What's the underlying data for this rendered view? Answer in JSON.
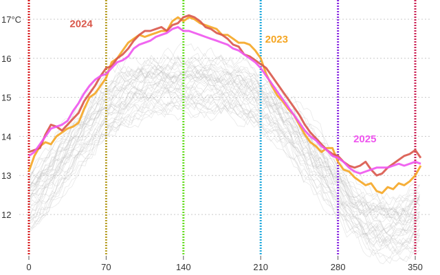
{
  "chart_data": {
    "type": "line",
    "title": "",
    "xlabel": "",
    "ylabel": "",
    "xlim": [
      -8,
      362
    ],
    "ylim": [
      11.1,
      17.35
    ],
    "x_ticks": [
      0,
      70,
      140,
      210,
      280,
      350
    ],
    "y_ticks": [
      12,
      13,
      14,
      15,
      16,
      17
    ],
    "y_unit_label": "°C",
    "grid": {
      "horizontal": true,
      "style": "dotted"
    },
    "vertical_markers": [
      {
        "x": 0,
        "color": "#d7191c"
      },
      {
        "x": 70,
        "color": "#b8a028"
      },
      {
        "x": 140,
        "color": "#66dd22"
      },
      {
        "x": 210,
        "color": "#22aadd"
      },
      {
        "x": 280,
        "color": "#8a2be2"
      },
      {
        "x": 350,
        "color": "#cc2255"
      }
    ],
    "background_years": {
      "color": "#bdbdbd",
      "description_hidden": true,
      "count": 40
    },
    "series": [
      {
        "name": "2023",
        "color": "#f5a623",
        "label_x": 214,
        "label_y": 16.4,
        "points": [
          [
            0,
            13.1
          ],
          [
            5,
            13.5
          ],
          [
            10,
            13.75
          ],
          [
            15,
            13.85
          ],
          [
            20,
            13.8
          ],
          [
            25,
            14.0
          ],
          [
            30,
            14.1
          ],
          [
            35,
            14.2
          ],
          [
            40,
            14.25
          ],
          [
            45,
            14.35
          ],
          [
            50,
            14.7
          ],
          [
            55,
            15.0
          ],
          [
            60,
            15.1
          ],
          [
            65,
            15.3
          ],
          [
            70,
            15.5
          ],
          [
            75,
            15.9
          ],
          [
            80,
            16.0
          ],
          [
            85,
            16.2
          ],
          [
            90,
            16.4
          ],
          [
            95,
            16.5
          ],
          [
            100,
            16.6
          ],
          [
            105,
            16.55
          ],
          [
            110,
            16.6
          ],
          [
            115,
            16.65
          ],
          [
            120,
            16.7
          ],
          [
            125,
            16.7
          ],
          [
            130,
            16.95
          ],
          [
            135,
            17.05
          ],
          [
            140,
            16.95
          ],
          [
            145,
            17.05
          ],
          [
            150,
            17.0
          ],
          [
            155,
            16.9
          ],
          [
            160,
            16.85
          ],
          [
            165,
            16.8
          ],
          [
            170,
            16.75
          ],
          [
            175,
            16.6
          ],
          [
            180,
            16.6
          ],
          [
            185,
            16.5
          ],
          [
            190,
            16.4
          ],
          [
            195,
            16.4
          ],
          [
            200,
            16.35
          ],
          [
            205,
            16.2
          ],
          [
            210,
            16.0
          ],
          [
            215,
            15.6
          ],
          [
            220,
            15.3
          ],
          [
            225,
            15.05
          ],
          [
            230,
            14.9
          ],
          [
            235,
            14.7
          ],
          [
            240,
            14.55
          ],
          [
            245,
            14.3
          ],
          [
            250,
            14.05
          ],
          [
            255,
            13.85
          ],
          [
            260,
            13.75
          ],
          [
            265,
            13.6
          ],
          [
            270,
            13.7
          ],
          [
            275,
            13.7
          ],
          [
            280,
            13.35
          ],
          [
            285,
            13.15
          ],
          [
            290,
            13.1
          ],
          [
            295,
            12.95
          ],
          [
            300,
            12.85
          ],
          [
            305,
            12.75
          ],
          [
            310,
            12.8
          ],
          [
            315,
            12.6
          ],
          [
            320,
            12.55
          ],
          [
            325,
            12.7
          ],
          [
            330,
            12.65
          ],
          [
            335,
            12.8
          ],
          [
            340,
            12.75
          ],
          [
            345,
            12.85
          ],
          [
            350,
            13.0
          ],
          [
            355,
            13.25
          ]
        ]
      },
      {
        "name": "2024",
        "color": "#d9574a",
        "label_x": 37,
        "label_y": 16.8,
        "points": [
          [
            0,
            13.6
          ],
          [
            5,
            13.65
          ],
          [
            10,
            13.7
          ],
          [
            15,
            14.05
          ],
          [
            20,
            14.3
          ],
          [
            25,
            14.25
          ],
          [
            30,
            14.15
          ],
          [
            35,
            14.3
          ],
          [
            40,
            14.45
          ],
          [
            45,
            14.6
          ],
          [
            50,
            14.9
          ],
          [
            55,
            15.1
          ],
          [
            60,
            15.3
          ],
          [
            65,
            15.55
          ],
          [
            70,
            15.75
          ],
          [
            75,
            15.8
          ],
          [
            80,
            16.0
          ],
          [
            85,
            16.1
          ],
          [
            90,
            16.25
          ],
          [
            95,
            16.45
          ],
          [
            100,
            16.6
          ],
          [
            105,
            16.7
          ],
          [
            110,
            16.7
          ],
          [
            115,
            16.75
          ],
          [
            120,
            16.8
          ],
          [
            125,
            16.7
          ],
          [
            130,
            16.85
          ],
          [
            135,
            16.9
          ],
          [
            140,
            17.05
          ],
          [
            145,
            17.1
          ],
          [
            150,
            17.05
          ],
          [
            155,
            16.95
          ],
          [
            160,
            16.8
          ],
          [
            165,
            16.75
          ],
          [
            170,
            16.65
          ],
          [
            175,
            16.6
          ],
          [
            180,
            16.5
          ],
          [
            185,
            16.35
          ],
          [
            190,
            16.3
          ],
          [
            195,
            16.1
          ],
          [
            200,
            16.05
          ],
          [
            205,
            15.95
          ],
          [
            210,
            15.85
          ],
          [
            215,
            15.75
          ],
          [
            220,
            15.55
          ],
          [
            225,
            15.35
          ],
          [
            230,
            15.15
          ],
          [
            235,
            14.95
          ],
          [
            240,
            14.75
          ],
          [
            245,
            14.55
          ],
          [
            250,
            14.3
          ],
          [
            255,
            14.1
          ],
          [
            260,
            13.95
          ],
          [
            265,
            13.8
          ],
          [
            270,
            13.65
          ],
          [
            275,
            13.55
          ],
          [
            280,
            13.5
          ],
          [
            285,
            13.35
          ],
          [
            290,
            13.25
          ],
          [
            295,
            13.2
          ],
          [
            300,
            13.25
          ],
          [
            305,
            13.35
          ],
          [
            310,
            13.15
          ],
          [
            315,
            13.0
          ],
          [
            320,
            13.05
          ],
          [
            325,
            13.2
          ],
          [
            330,
            13.3
          ],
          [
            335,
            13.4
          ],
          [
            340,
            13.5
          ],
          [
            345,
            13.55
          ],
          [
            350,
            13.65
          ],
          [
            355,
            13.45
          ]
        ]
      },
      {
        "name": "2025",
        "color": "#ee55ee",
        "label_x": 294,
        "label_y": 13.85,
        "points": [
          [
            0,
            13.5
          ],
          [
            5,
            13.6
          ],
          [
            10,
            13.8
          ],
          [
            15,
            14.0
          ],
          [
            20,
            14.2
          ],
          [
            25,
            14.25
          ],
          [
            30,
            14.3
          ],
          [
            35,
            14.4
          ],
          [
            40,
            14.65
          ],
          [
            45,
            14.85
          ],
          [
            50,
            15.1
          ],
          [
            55,
            15.3
          ],
          [
            60,
            15.45
          ],
          [
            65,
            15.55
          ],
          [
            70,
            15.6
          ],
          [
            75,
            15.75
          ],
          [
            80,
            15.9
          ],
          [
            85,
            15.95
          ],
          [
            90,
            16.05
          ],
          [
            95,
            16.25
          ],
          [
            100,
            16.35
          ],
          [
            105,
            16.4
          ],
          [
            110,
            16.45
          ],
          [
            115,
            16.55
          ],
          [
            120,
            16.6
          ],
          [
            125,
            16.65
          ],
          [
            130,
            16.75
          ],
          [
            135,
            16.8
          ],
          [
            140,
            16.7
          ],
          [
            145,
            16.7
          ],
          [
            150,
            16.65
          ],
          [
            155,
            16.6
          ],
          [
            160,
            16.55
          ],
          [
            165,
            16.5
          ],
          [
            170,
            16.45
          ],
          [
            175,
            16.4
          ],
          [
            180,
            16.35
          ],
          [
            185,
            16.25
          ],
          [
            190,
            16.2
          ],
          [
            195,
            16.1
          ],
          [
            200,
            16.0
          ],
          [
            205,
            15.9
          ],
          [
            210,
            15.75
          ],
          [
            215,
            15.55
          ],
          [
            220,
            15.35
          ],
          [
            225,
            15.15
          ],
          [
            230,
            14.95
          ],
          [
            235,
            14.75
          ],
          [
            240,
            14.55
          ],
          [
            245,
            14.35
          ],
          [
            250,
            14.15
          ],
          [
            255,
            14.0
          ],
          [
            260,
            13.9
          ],
          [
            265,
            13.75
          ],
          [
            270,
            13.65
          ],
          [
            275,
            13.5
          ],
          [
            280,
            13.45
          ],
          [
            285,
            13.35
          ],
          [
            290,
            13.2
          ],
          [
            295,
            13.1
          ],
          [
            300,
            13.05
          ],
          [
            305,
            13.1
          ],
          [
            310,
            13.15
          ],
          [
            315,
            13.2
          ],
          [
            320,
            13.2
          ],
          [
            325,
            13.2
          ],
          [
            330,
            13.25
          ],
          [
            335,
            13.3
          ],
          [
            340,
            13.25
          ],
          [
            345,
            13.3
          ],
          [
            350,
            13.35
          ],
          [
            355,
            13.3
          ]
        ]
      }
    ]
  }
}
